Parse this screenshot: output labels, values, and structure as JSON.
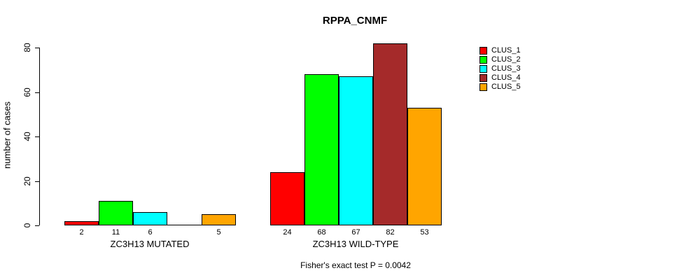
{
  "title": "RPPA_CNMF",
  "footer": "Fisher's exact test P = 0.0042",
  "y_axis": {
    "label": "number of cases",
    "ticks": [
      0,
      20,
      40,
      60,
      80
    ]
  },
  "legend": {
    "entries": [
      {
        "label": "CLUS_1",
        "color": "#FF0000"
      },
      {
        "label": "CLUS_2",
        "color": "#00FF00"
      },
      {
        "label": "CLUS_3",
        "color": "#00FFFF"
      },
      {
        "label": "CLUS_4",
        "color": "#A52A2A"
      },
      {
        "label": "CLUS_5",
        "color": "#FFA500"
      }
    ]
  },
  "chart_data": {
    "type": "bar",
    "title": "RPPA_CNMF",
    "xlabel": "",
    "ylabel": "number of cases",
    "ylim": [
      0,
      80
    ],
    "yticks": [
      0,
      20,
      40,
      60,
      80
    ],
    "grid": false,
    "legend_position": "right",
    "categories": [
      "ZC3H13 MUTATED",
      "ZC3H13 WILD-TYPE"
    ],
    "series": [
      {
        "name": "CLUS_1",
        "color": "#FF0000",
        "values": [
          2,
          24
        ]
      },
      {
        "name": "CLUS_2",
        "color": "#00FF00",
        "values": [
          11,
          68
        ]
      },
      {
        "name": "CLUS_3",
        "color": "#00FFFF",
        "values": [
          6,
          67
        ]
      },
      {
        "name": "CLUS_4",
        "color": "#A52A2A",
        "values": [
          0,
          82
        ]
      },
      {
        "name": "CLUS_5",
        "color": "#FFA500",
        "values": [
          5,
          53
        ]
      }
    ],
    "bar_value_labels": [
      [
        "2",
        "11",
        "6",
        "",
        "5"
      ],
      [
        "24",
        "68",
        "67",
        "82",
        "53"
      ]
    ],
    "annotation": "Fisher's exact test P = 0.0042"
  }
}
